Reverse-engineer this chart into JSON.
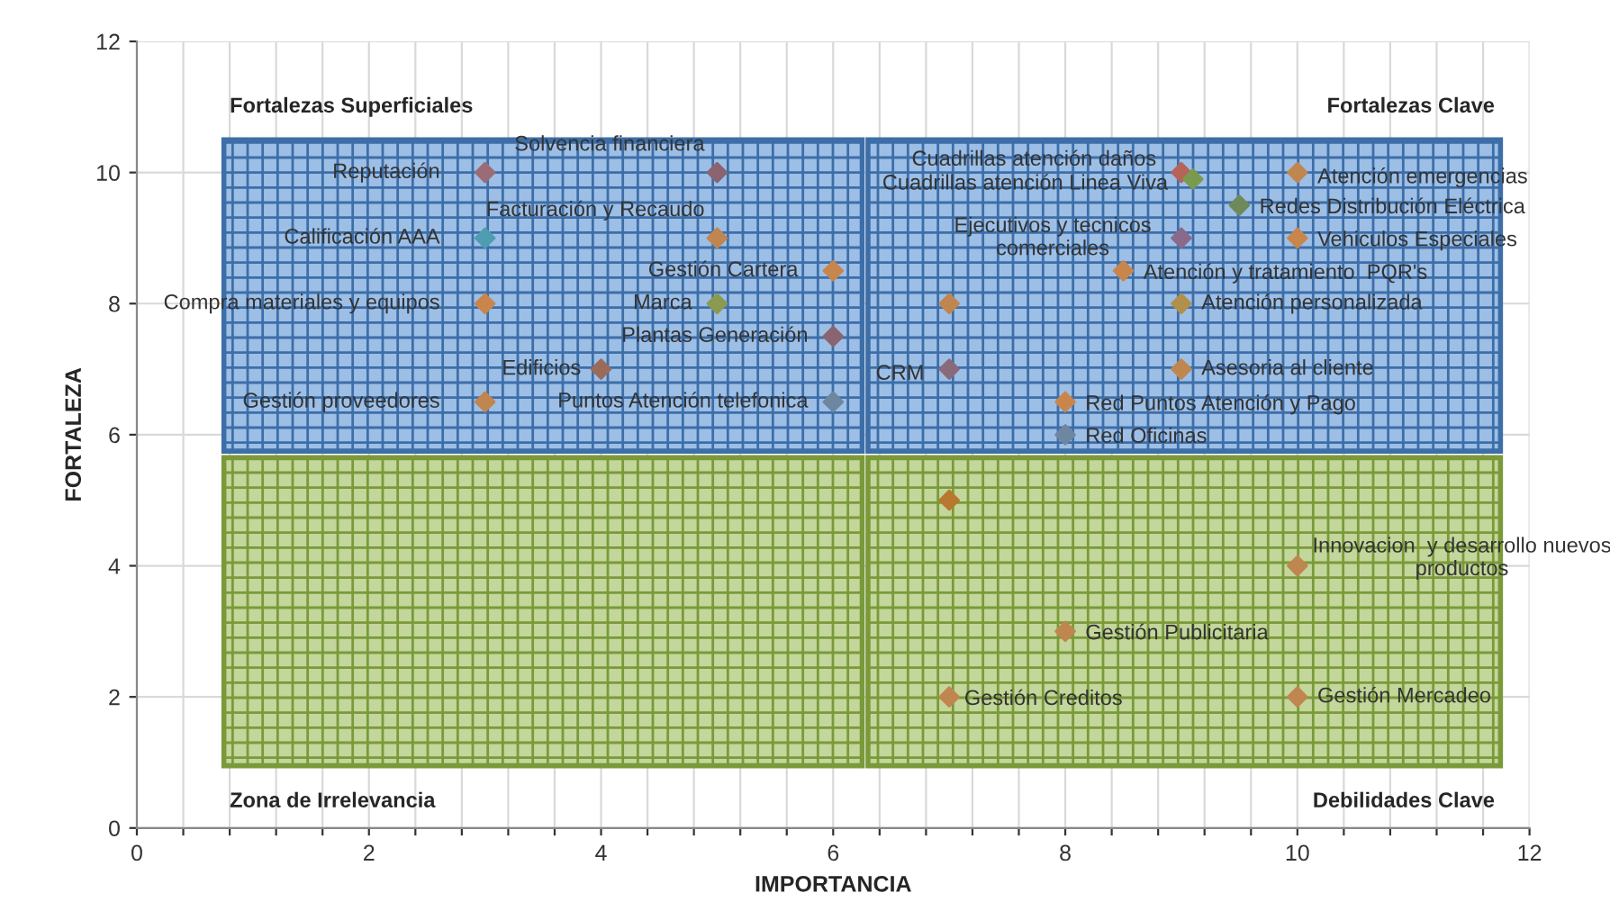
{
  "chart_data": {
    "type": "scatter",
    "xlabel": "IMPORTANCIA",
    "ylabel": "FORTALEZA",
    "marker": "diamond",
    "grid": true,
    "legend": false,
    "xlim": [
      0,
      12
    ],
    "ylim": [
      0,
      12
    ],
    "xticks": [
      0,
      {
        "value": 0.4,
        "label": null
      },
      {
        "value": 0.8,
        "label": null
      },
      {
        "value": 1.2,
        "label": null
      },
      {
        "value": 1.6,
        "label": null
      },
      2,
      {
        "value": 2.4,
        "label": null
      },
      {
        "value": 2.8,
        "label": null
      },
      {
        "value": 3.2,
        "label": null
      },
      {
        "value": 3.6,
        "label": null
      },
      4,
      {
        "value": 4.4,
        "label": null
      },
      {
        "value": 4.8,
        "label": null
      },
      {
        "value": 5.2,
        "label": null
      },
      {
        "value": 5.6,
        "label": null
      },
      6,
      {
        "value": 6.4,
        "label": null
      },
      {
        "value": 6.8,
        "label": null
      },
      {
        "value": 7.2,
        "label": null
      },
      {
        "value": 7.6,
        "label": null
      },
      8,
      {
        "value": 8.4,
        "label": null
      },
      {
        "value": 8.8,
        "label": null
      },
      {
        "value": 9.2,
        "label": null
      },
      {
        "value": 9.6,
        "label": null
      },
      10,
      {
        "value": 10.4,
        "label": null
      },
      {
        "value": 10.8,
        "label": null
      },
      {
        "value": 11.2,
        "label": null
      },
      {
        "value": 11.6,
        "label": null
      },
      12
    ],
    "yticks": [
      0,
      2,
      4,
      6,
      8,
      10,
      12
    ],
    "series": [
      {
        "x": [
          3,
          5,
          3,
          5,
          6,
          3,
          5,
          6,
          4,
          3,
          6,
          9,
          9.1,
          10,
          9.5,
          9,
          10,
          8.5,
          7,
          9,
          7,
          9,
          8,
          8,
          7,
          10,
          8,
          7,
          10
        ],
        "values": [
          10,
          10,
          9,
          9,
          8.5,
          8,
          8,
          7.5,
          7,
          6.5,
          6.5,
          10,
          9.9,
          10,
          9.5,
          9,
          9,
          8.5,
          8,
          8,
          7,
          7,
          6.5,
          6,
          5,
          4,
          3,
          2,
          2
        ],
        "colors": [
          "#9b6b78",
          "#8a6470",
          "#4f9db0",
          "#c0864f",
          "#c8864d",
          "#c8864d",
          "#8a9a50",
          "#8a6470",
          "#9b6b5a",
          "#c0864f",
          "#6f86a0",
          "#b5645a",
          "#7a9a50",
          "#c0864f",
          "#6f8a5a",
          "#8a6a8a",
          "#c8864d",
          "#c8864d",
          "#c0864f",
          "#b0904d",
          "#8a6a7a",
          "#c0864f",
          "#c8864d",
          "#6f86a0",
          "#b8782d",
          "#c0864f",
          "#c0864f",
          "#c0864f",
          "#c0864f"
        ]
      }
    ],
    "annotations": [
      {
        "text": "Reputación",
        "x": 3,
        "y": 10
      },
      {
        "text": "Solvencia financiera",
        "x": 5,
        "y": 10
      },
      {
        "text": "Calificación AAA",
        "x": 3,
        "y": 9
      },
      {
        "text": "Facturación y Recaudo",
        "x": 5,
        "y": 9
      },
      {
        "text": "Gestión Cartera",
        "x": 6,
        "y": 8.5
      },
      {
        "text": "Compra materiales y equipos",
        "x": 3,
        "y": 8
      },
      {
        "text": "Marca",
        "x": 5,
        "y": 8
      },
      {
        "text": "Plantas Generación",
        "x": 6,
        "y": 7.5
      },
      {
        "text": "Edificios",
        "x": 4,
        "y": 7
      },
      {
        "text": "Gestión proveedores",
        "x": 3,
        "y": 6.5
      },
      {
        "text": "Puntos Atención telefonica",
        "x": 6,
        "y": 6.5
      },
      {
        "text": "Cuadrillas atención daños",
        "x": 9,
        "y": 10
      },
      {
        "text": "Cuadrillas atención Linea Viva",
        "x": 9.1,
        "y": 9.9
      },
      {
        "text": "Atención emergencias",
        "x": 10,
        "y": 10
      },
      {
        "text": "Redes Distribución Eléctrica",
        "x": 9.5,
        "y": 9.5
      },
      {
        "text": "Ejecutivos y tecnicos\ncomerciales",
        "x": 9,
        "y": 9
      },
      {
        "text": "Vehiculos Especiales",
        "x": 10,
        "y": 9
      },
      {
        "text": "Atención y tratamiento  PQR's",
        "x": 8.5,
        "y": 8.5
      },
      {
        "text": "Atención personalizada",
        "x": 9,
        "y": 8
      },
      {
        "text": "CRM",
        "x": 7,
        "y": 7
      },
      {
        "text": "Asesoria al cliente",
        "x": 9,
        "y": 7
      },
      {
        "text": "Red Puntos Atención y Pago",
        "x": 8,
        "y": 6.5
      },
      {
        "text": "Red Oficinas",
        "x": 8,
        "y": 6
      },
      {
        "text": "Innovacion  y desarrollo nuevos\nproductos",
        "x": 10,
        "y": 4
      },
      {
        "text": "Gestión Publicitaria",
        "x": 8,
        "y": 3
      },
      {
        "text": "Gestión Creditos",
        "x": 7,
        "y": 2
      },
      {
        "text": "Gestión Mercadeo",
        "x": 10,
        "y": 2
      },
      "Fortalezas Superficiales",
      "Fortalezas Clave",
      "Zona de Irrelevancia",
      "Debilidades Clave"
    ]
  }
}
